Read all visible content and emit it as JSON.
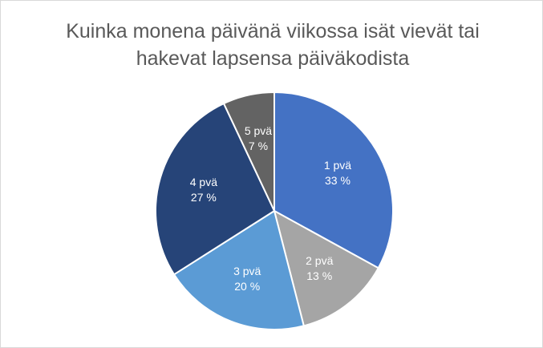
{
  "chart_data": {
    "type": "pie",
    "title": "Kuinka monena päivänä viikossa isät vievät tai hakevat lapsensa päiväkodista",
    "categories": [
      "1 pvä",
      "2 pvä",
      "3 pvä",
      "4 pvä",
      "5 pvä"
    ],
    "values": [
      33,
      13,
      20,
      27,
      7
    ],
    "value_labels": [
      "33 %",
      "13 %",
      "20 %",
      "27 %",
      "7 %"
    ],
    "colors": [
      "#4472c4",
      "#a5a5a5",
      "#5b9bd5",
      "#264478",
      "#636363"
    ]
  }
}
